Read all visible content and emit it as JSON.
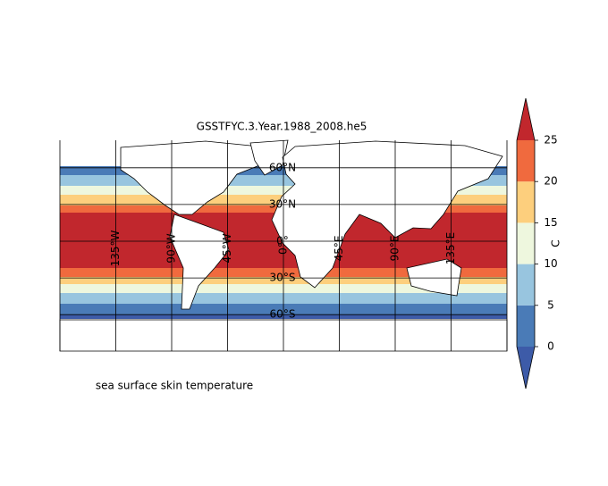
{
  "title": "GSSTFYC.3.Year.1988_2008.he5",
  "caption": "sea surface skin temperature",
  "map": {
    "xlim": [
      -180,
      180
    ],
    "lat_ticks": [
      {
        "value": 60,
        "label": "60°N"
      },
      {
        "value": 30,
        "label": "30°N"
      },
      {
        "value": 0,
        "label": "0°"
      },
      {
        "value": -30,
        "label": "30°S"
      },
      {
        "value": -60,
        "label": "60°S"
      }
    ],
    "lon_ticks": [
      {
        "value": -135,
        "label": "135°W"
      },
      {
        "value": -90,
        "label": "90°W"
      },
      {
        "value": -45,
        "label": "45°W"
      },
      {
        "value": 0,
        "label": "0°"
      },
      {
        "value": 45,
        "label": "45°E"
      },
      {
        "value": 90,
        "label": "90°E"
      },
      {
        "value": 135,
        "label": "135°E"
      }
    ]
  },
  "colorbar": {
    "label": "C",
    "lim": [
      0,
      25
    ],
    "ticks": [
      0,
      5,
      10,
      15,
      20,
      25
    ],
    "extend": "both",
    "colors": [
      "#3d5ba8",
      "#4a7bb7",
      "#98c5df",
      "#eef7de",
      "#fdcf7d",
      "#f06a3e",
      "#c1272d"
    ]
  }
}
